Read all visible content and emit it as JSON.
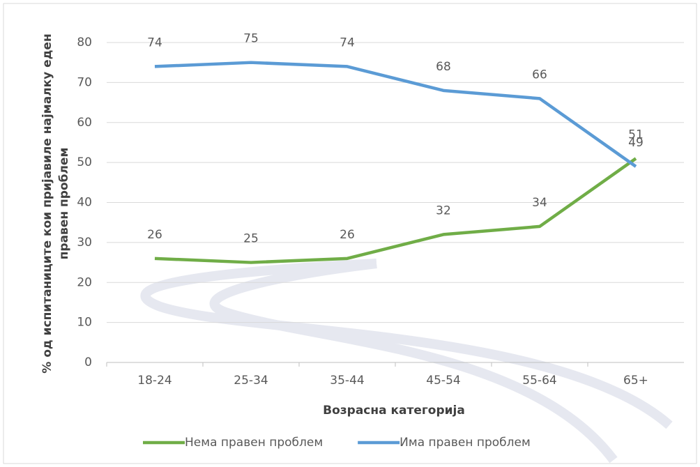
{
  "chart_data": {
    "type": "line",
    "x_label": "Возрасна категорија",
    "y_label": [
      "% од испитаниците кои пријавиле најмалку еден",
      "правен проблем"
    ],
    "categories": [
      "18-24",
      "25-34",
      "35-44",
      "45-54",
      "55-64",
      "65+"
    ],
    "series": [
      {
        "name": "Нема правен проблем",
        "color": "#70ad47",
        "values": [
          26,
          25,
          26,
          32,
          34,
          51
        ]
      },
      {
        "name": "Има правен проблем",
        "color": "#5b9bd5",
        "values": [
          74,
          75,
          74,
          68,
          66,
          49
        ]
      }
    ],
    "ylim": [
      0,
      80
    ],
    "yticks": [
      0,
      10,
      20,
      30,
      40,
      50,
      60,
      70,
      80
    ],
    "grid": true,
    "legend": "bottom"
  }
}
